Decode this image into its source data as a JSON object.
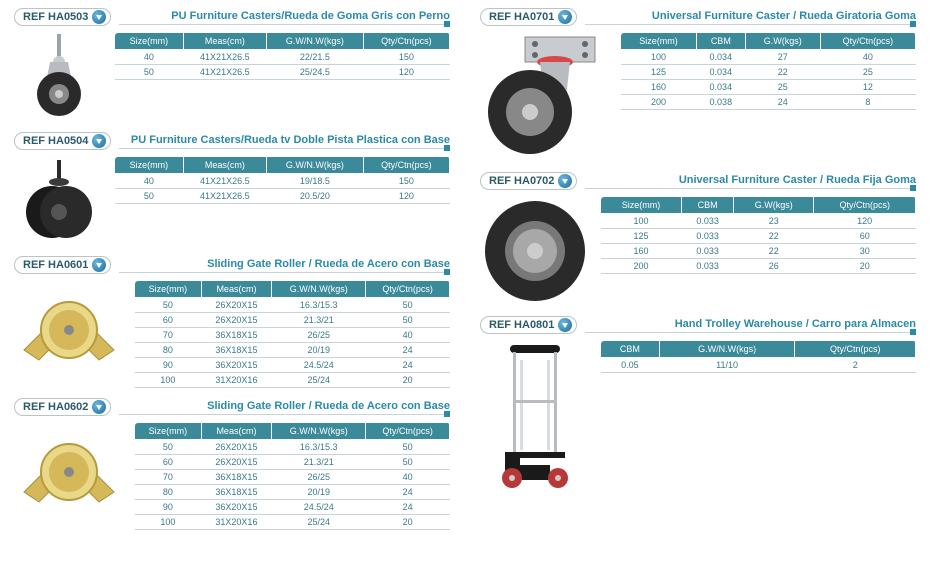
{
  "left": [
    {
      "ref": "REF HA0503",
      "title": "PU Furniture Casters/Rueda de Goma Gris con Perno",
      "img": "caster1",
      "cols": [
        "Size(mm)",
        "Meas(cm)",
        "G.W/N.W(kgs)",
        "Qty/Ctn(pcs)"
      ],
      "rows": [
        [
          "40",
          "41X21X26.5",
          "22/21.5",
          "150"
        ],
        [
          "50",
          "41X21X26.5",
          "25/24.5",
          "120"
        ]
      ]
    },
    {
      "ref": "REF HA0504",
      "title": "PU Furniture Casters/Rueda tv Doble Pista Plastica con Base",
      "img": "caster2",
      "cols": [
        "Size(mm)",
        "Meas(cm)",
        "G.W/N.W(kgs)",
        "Qty/Ctn(pcs)"
      ],
      "rows": [
        [
          "40",
          "41X21X26.5",
          "19/18.5",
          "150"
        ],
        [
          "50",
          "41X21X26.5",
          "20.5/20",
          "120"
        ]
      ]
    },
    {
      "ref": "REF HA0601",
      "title": "Sliding Gate Roller / Rueda de Acero con Base",
      "img": "roller",
      "cols": [
        "Size(mm)",
        "Meas(cm)",
        "G.W/N.W(kgs)",
        "Qty/Ctn(pcs)"
      ],
      "rows": [
        [
          "50",
          "26X20X15",
          "16.3/15.3",
          "50"
        ],
        [
          "60",
          "26X20X15",
          "21.3/21",
          "50"
        ],
        [
          "70",
          "36X18X15",
          "26/25",
          "40"
        ],
        [
          "80",
          "36X18X15",
          "20/19",
          "24"
        ],
        [
          "90",
          "36X20X15",
          "24.5/24",
          "24"
        ],
        [
          "100",
          "31X20X16",
          "25/24",
          "20"
        ]
      ]
    },
    {
      "ref": "REF HA0602",
      "title": "Sliding Gate Roller / Rueda de Acero con Base",
      "img": "roller",
      "cols": [
        "Size(mm)",
        "Meas(cm)",
        "G.W/N.W(kgs)",
        "Qty/Ctn(pcs)"
      ],
      "rows": [
        [
          "50",
          "26X20X15",
          "16.3/15.3",
          "50"
        ],
        [
          "60",
          "26X20X15",
          "21.3/21",
          "50"
        ],
        [
          "70",
          "36X18X15",
          "26/25",
          "40"
        ],
        [
          "80",
          "36X18X15",
          "20/19",
          "24"
        ],
        [
          "90",
          "36X20X15",
          "24.5/24",
          "24"
        ],
        [
          "100",
          "31X20X16",
          "25/24",
          "20"
        ]
      ]
    }
  ],
  "right": [
    {
      "ref": "REF HA0701",
      "title": "Universal Furniture Caster / Rueda Giratoria Goma",
      "img": "swivel",
      "cols": [
        "Size(mm)",
        "CBM",
        "G.W(kgs)",
        "Qty/Ctn(pcs)"
      ],
      "rows": [
        [
          "100",
          "0.034",
          "27",
          "40"
        ],
        [
          "125",
          "0.034",
          "22",
          "25"
        ],
        [
          "160",
          "0.034",
          "25",
          "12"
        ],
        [
          "200",
          "0.038",
          "24",
          "8"
        ]
      ]
    },
    {
      "ref": "REF HA0702",
      "title": "Universal Furniture Caster / Rueda Fija Goma",
      "img": "wheel",
      "cols": [
        "Size(mm)",
        "CBM",
        "G.W(kgs)",
        "Qty/Ctn(pcs)"
      ],
      "rows": [
        [
          "100",
          "0.033",
          "23",
          "120"
        ],
        [
          "125",
          "0.033",
          "22",
          "60"
        ],
        [
          "160",
          "0.033",
          "22",
          "30"
        ],
        [
          "200",
          "0.033",
          "26",
          "20"
        ]
      ]
    },
    {
      "ref": "REF HA0801",
      "title": "Hand Trolley Warehouse / Carro para Almacen",
      "img": "trolley",
      "cols": [
        "CBM",
        "G.W/N.W(kgs)",
        "Qty/Ctn(pcs)"
      ],
      "rows": [
        [
          "0.05",
          "11/10",
          "2"
        ]
      ]
    }
  ]
}
